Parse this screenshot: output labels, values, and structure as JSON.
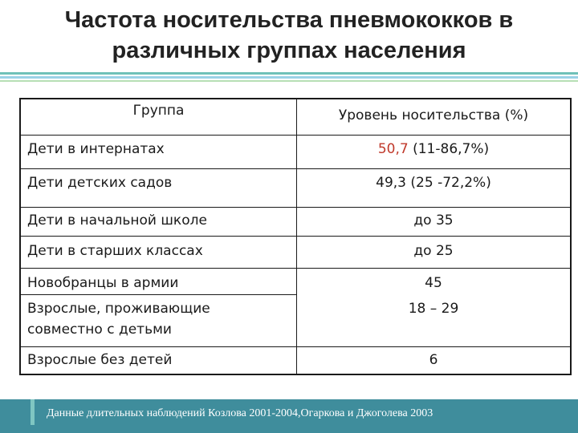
{
  "title": {
    "line1": "Частота носительства пневмококков в",
    "line2": "различных группах населения"
  },
  "table": {
    "headers": [
      "Группа",
      "Уровень носительства (%)"
    ],
    "rows": [
      {
        "group": "Дети в интернатах",
        "level": "50,7 (11-86,7%)"
      },
      {
        "group": "Дети детских садов",
        "level": "49,3 (25 -72,2%)"
      },
      {
        "group": "Дети в начальной школе",
        "level": "до 35"
      },
      {
        "group": "Дети в старших классах",
        "level": "до 25"
      },
      {
        "group": "Новобранцы в армии",
        "level": "45"
      },
      {
        "group": "Взрослые, проживающие совместно с детьми",
        "level": "18 – 29"
      },
      {
        "group": "Взрослые без детей",
        "level": "6"
      }
    ]
  },
  "footer": {
    "text": "Данные длительных наблюдений Козлова 2001-2004,Огаркова и Джоголева 2003"
  },
  "colors": {
    "accent": "#3f8d9c",
    "rule_teal": "#6fc1b8",
    "rule_blue": "#9ad1e6",
    "rule_green": "#b7dfb4"
  }
}
